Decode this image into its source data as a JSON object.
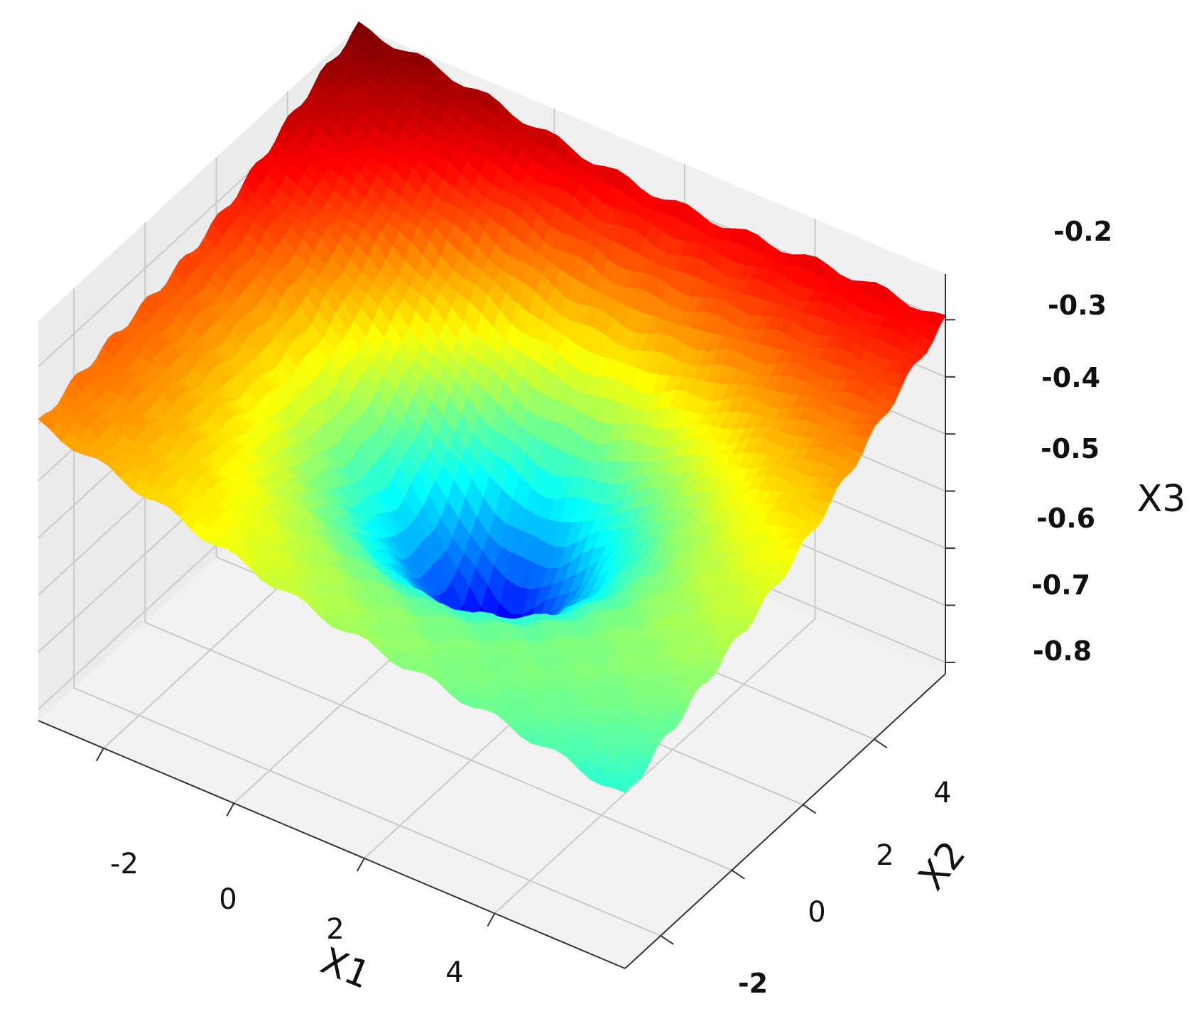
{
  "chart_data": {
    "type": "surface3d",
    "colormap": "jet",
    "xlabel": "X1",
    "ylabel": "X2",
    "zlabel": "X3",
    "x_ticks": [
      "-2",
      "0",
      "2",
      "4"
    ],
    "y_ticks": [
      "-2",
      "0",
      "2",
      "4"
    ],
    "z_ticks": [
      "-0.2",
      "-0.3",
      "-0.4",
      "-0.5",
      "-0.6",
      "-0.7",
      "-0.8"
    ],
    "xlim": [
      -3,
      6
    ],
    "ylim": [
      -3,
      6
    ],
    "zlim": [
      -0.82,
      -0.12
    ],
    "minimum": {
      "x": 1.5,
      "y": 1.5,
      "z": -0.8
    },
    "corner_values": {
      "x_min_y_min": -0.3,
      "x_min_y_max": -0.12,
      "x_max_y_min": -0.52,
      "x_max_y_max": -0.2
    },
    "grid": true
  }
}
